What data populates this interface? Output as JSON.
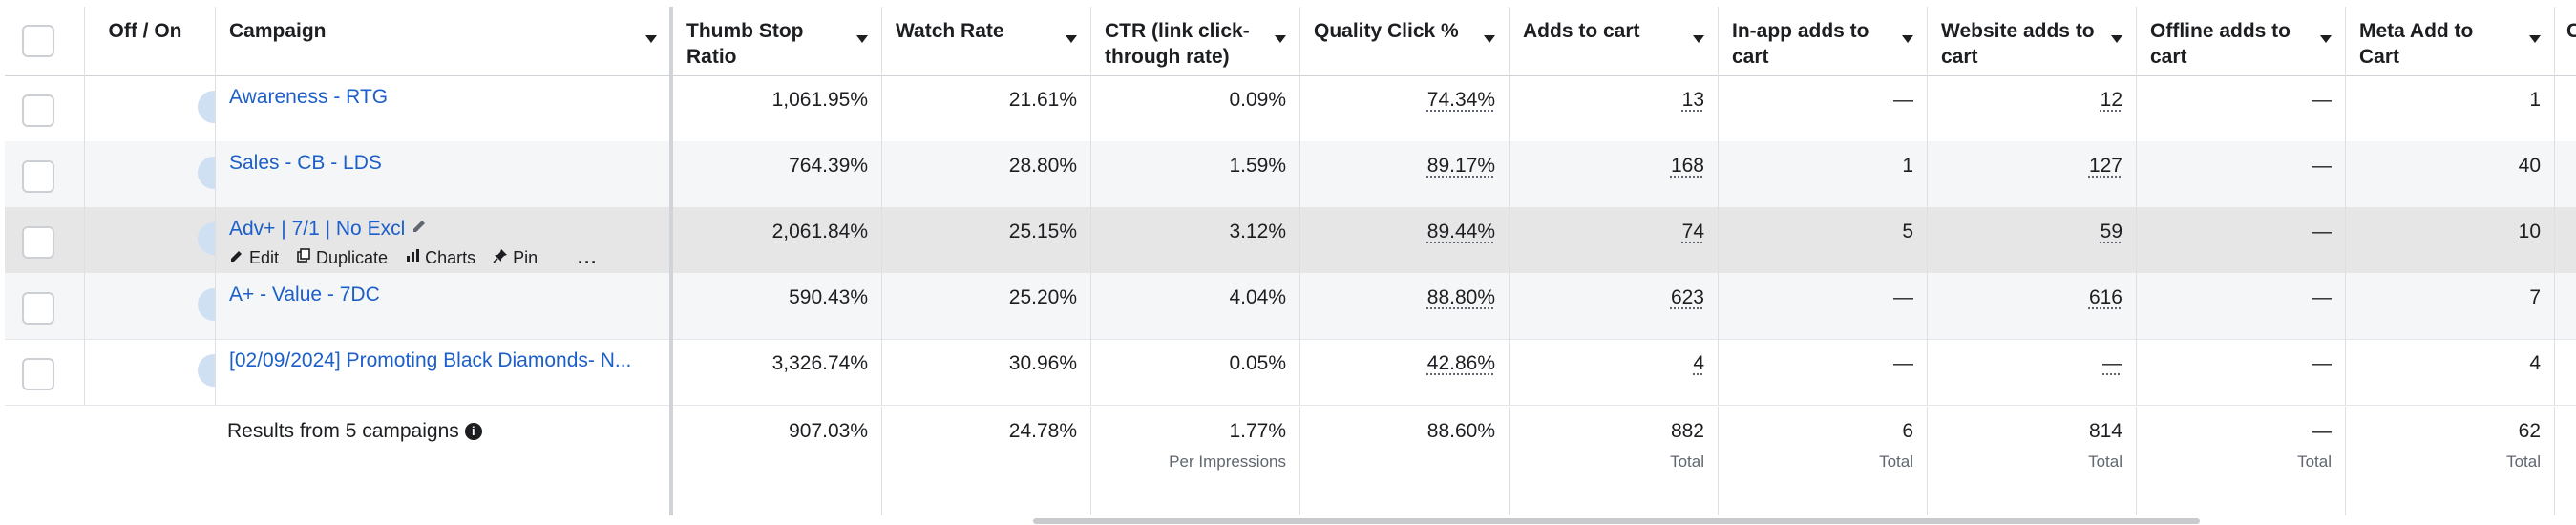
{
  "columns": [
    {
      "label": "Off / On"
    },
    {
      "label": "Campaign"
    },
    {
      "label": "Thumb Stop Ratio"
    },
    {
      "label": "Watch Rate"
    },
    {
      "label": "CTR (link click-through rate)"
    },
    {
      "label": "Quality Click %"
    },
    {
      "label": "Adds to cart"
    },
    {
      "label": "In-app adds to cart"
    },
    {
      "label": "Website adds to cart"
    },
    {
      "label": "Offline adds to cart"
    },
    {
      "label": "Meta Add to Cart"
    },
    {
      "label": "C"
    }
  ],
  "rows": [
    {
      "name": "Awareness - RTG",
      "thumb_stop": "1,061.95%",
      "watch_rate": "21.61%",
      "ctr": "0.09%",
      "quality": "74.34%",
      "adds": "13",
      "inapp": "—",
      "website": "12",
      "offline": "—",
      "meta": "1"
    },
    {
      "name": "Sales - CB - LDS",
      "thumb_stop": "764.39%",
      "watch_rate": "28.80%",
      "ctr": "1.59%",
      "quality": "89.17%",
      "adds": "168",
      "inapp": "1",
      "website": "127",
      "offline": "—",
      "meta": "40"
    },
    {
      "name": "Adv+ | 7/1 | No Excl",
      "thumb_stop": "2,061.84%",
      "watch_rate": "25.15%",
      "ctr": "3.12%",
      "quality": "89.44%",
      "adds": "74",
      "inapp": "5",
      "website": "59",
      "offline": "—",
      "meta": "10"
    },
    {
      "name": "A+ - Value - 7DC",
      "thumb_stop": "590.43%",
      "watch_rate": "25.20%",
      "ctr": "4.04%",
      "quality": "88.80%",
      "adds": "623",
      "inapp": "—",
      "website": "616",
      "offline": "—",
      "meta": "7"
    },
    {
      "name": "[02/09/2024] Promoting Black Diamonds- N...",
      "thumb_stop": "3,326.74%",
      "watch_rate": "30.96%",
      "ctr": "0.05%",
      "quality": "42.86%",
      "adds": "4",
      "inapp": "—",
      "website": "—",
      "offline": "—",
      "meta": "4"
    }
  ],
  "row_actions": {
    "edit": "Edit",
    "duplicate": "Duplicate",
    "charts": "Charts",
    "pin": "Pin",
    "more": "..."
  },
  "footer": {
    "results": "Results from 5 campaigns",
    "thumb_stop": "907.03%",
    "watch_rate": "24.78%",
    "ctr": "1.77%",
    "ctr_sub": "Per Impressions",
    "quality": "88.60%",
    "adds": "882",
    "adds_sub": "Total",
    "inapp": "6",
    "inapp_sub": "Total",
    "website": "814",
    "website_sub": "Total",
    "offline": "—",
    "offline_sub": "Total",
    "meta": "62",
    "meta_sub": "Total"
  },
  "colors": {
    "link": "#1c5fc9",
    "toggle_on": "#2f6fc6",
    "row_alt": "#f5f6f7",
    "row_hover": "#e6e6e6"
  }
}
